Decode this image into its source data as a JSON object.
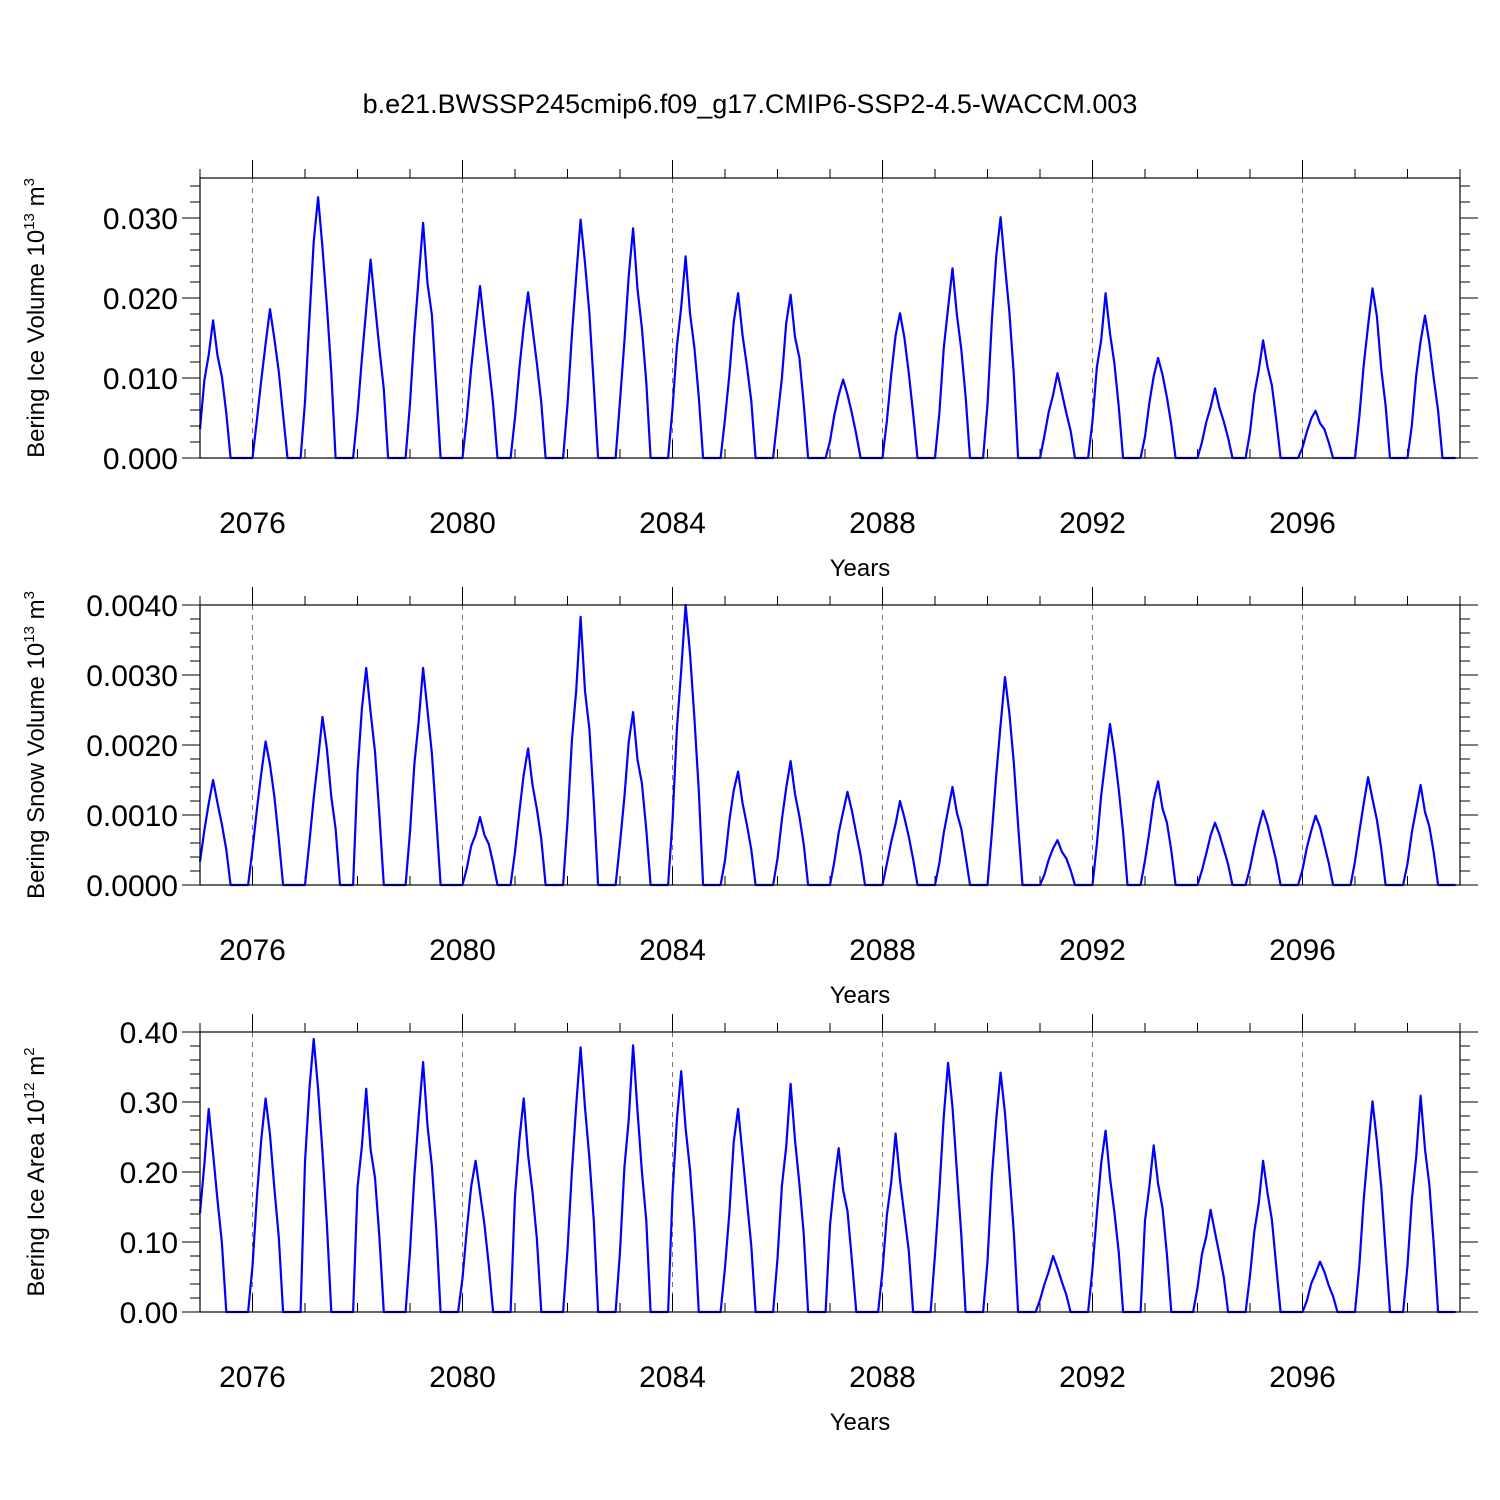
{
  "chart_data": {
    "title": "b.e21.BWSSP245cmip6.f09_g17.CMIP6-SSP2-4.5-WACCM.003",
    "type": "line",
    "xlim": [
      2075,
      2099
    ],
    "x_major_ticks": [
      2076,
      2080,
      2084,
      2088,
      2092,
      2096
    ],
    "x_tick_labels": [
      "2076",
      "2080",
      "2084",
      "2088",
      "2092",
      "2096"
    ],
    "series_color": "#0000ff",
    "panels": [
      {
        "name": "ice-volume",
        "xlabel": "Years",
        "ylabel_base": "Bering Ice Volume 10",
        "ylabel_exp": "13",
        "ylabel_unit": " m",
        "ylabel_unit_exp": "3",
        "ylim": [
          0,
          0.035
        ],
        "yticks": [
          0,
          0.01,
          0.02,
          0.03
        ],
        "ytick_labels": [
          "0.000",
          "0.010",
          "0.020",
          "0.030"
        ],
        "peaks": [
          {
            "x": 2075.25,
            "y": 0.0172
          },
          {
            "x": 2076.33,
            "y": 0.0186
          },
          {
            "x": 2077.25,
            "y": 0.0326
          },
          {
            "x": 2078.25,
            "y": 0.0248
          },
          {
            "x": 2079.25,
            "y": 0.0294
          },
          {
            "x": 2080.33,
            "y": 0.0215
          },
          {
            "x": 2081.25,
            "y": 0.0207
          },
          {
            "x": 2082.25,
            "y": 0.0298
          },
          {
            "x": 2083.25,
            "y": 0.0287
          },
          {
            "x": 2084.25,
            "y": 0.0252
          },
          {
            "x": 2085.25,
            "y": 0.0206
          },
          {
            "x": 2086.25,
            "y": 0.0204
          },
          {
            "x": 2087.25,
            "y": 0.0098
          },
          {
            "x": 2088.33,
            "y": 0.0181
          },
          {
            "x": 2089.33,
            "y": 0.0237
          },
          {
            "x": 2090.25,
            "y": 0.0301
          },
          {
            "x": 2091.33,
            "y": 0.0106
          },
          {
            "x": 2092.25,
            "y": 0.0206
          },
          {
            "x": 2093.25,
            "y": 0.0125
          },
          {
            "x": 2094.33,
            "y": 0.0087
          },
          {
            "x": 2095.25,
            "y": 0.0147
          },
          {
            "x": 2096.25,
            "y": 0.0059
          },
          {
            "x": 2097.33,
            "y": 0.0212
          },
          {
            "x": 2098.33,
            "y": 0.0178
          }
        ]
      },
      {
        "name": "snow-volume",
        "xlabel": "Years",
        "ylabel_base": "Bering Snow Volume 10",
        "ylabel_exp": "13",
        "ylabel_unit": " m",
        "ylabel_unit_exp": "3",
        "ylim": [
          0,
          0.004
        ],
        "yticks": [
          0,
          0.001,
          0.002,
          0.003,
          0.004
        ],
        "ytick_labels": [
          "0.0000",
          "0.0010",
          "0.0020",
          "0.0030",
          "0.0040"
        ],
        "peaks": [
          {
            "x": 2075.25,
            "y": 0.0015
          },
          {
            "x": 2076.25,
            "y": 0.00205
          },
          {
            "x": 2077.33,
            "y": 0.0024
          },
          {
            "x": 2078.17,
            "y": 0.0031
          },
          {
            "x": 2079.25,
            "y": 0.0031
          },
          {
            "x": 2080.33,
            "y": 0.00097
          },
          {
            "x": 2081.25,
            "y": 0.00195
          },
          {
            "x": 2082.25,
            "y": 0.00383
          },
          {
            "x": 2083.25,
            "y": 0.00247
          },
          {
            "x": 2084.25,
            "y": 0.004
          },
          {
            "x": 2085.25,
            "y": 0.00162
          },
          {
            "x": 2086.25,
            "y": 0.00177
          },
          {
            "x": 2087.33,
            "y": 0.00133
          },
          {
            "x": 2088.33,
            "y": 0.0012
          },
          {
            "x": 2089.33,
            "y": 0.0014
          },
          {
            "x": 2090.33,
            "y": 0.00297
          },
          {
            "x": 2091.33,
            "y": 0.00064
          },
          {
            "x": 2092.33,
            "y": 0.0023
          },
          {
            "x": 2093.25,
            "y": 0.00148
          },
          {
            "x": 2094.33,
            "y": 0.00089
          },
          {
            "x": 2095.25,
            "y": 0.00106
          },
          {
            "x": 2096.25,
            "y": 0.00099
          },
          {
            "x": 2097.25,
            "y": 0.00154
          },
          {
            "x": 2098.25,
            "y": 0.00143
          }
        ]
      },
      {
        "name": "ice-area",
        "xlabel": "Years",
        "ylabel_base": "Bering Ice Area 10",
        "ylabel_exp": "12",
        "ylabel_unit": " m",
        "ylabel_unit_exp": "2",
        "ylim": [
          0,
          0.4
        ],
        "yticks": [
          0,
          0.1,
          0.2,
          0.3,
          0.4
        ],
        "ytick_labels": [
          "0.00",
          "0.10",
          "0.20",
          "0.30",
          "0.40"
        ],
        "peaks": [
          {
            "x": 2075.17,
            "y": 0.29
          },
          {
            "x": 2076.25,
            "y": 0.305
          },
          {
            "x": 2077.17,
            "y": 0.39
          },
          {
            "x": 2078.17,
            "y": 0.319
          },
          {
            "x": 2079.25,
            "y": 0.357
          },
          {
            "x": 2080.25,
            "y": 0.216
          },
          {
            "x": 2081.17,
            "y": 0.305
          },
          {
            "x": 2082.25,
            "y": 0.378
          },
          {
            "x": 2083.25,
            "y": 0.381
          },
          {
            "x": 2084.17,
            "y": 0.344
          },
          {
            "x": 2085.25,
            "y": 0.29
          },
          {
            "x": 2086.25,
            "y": 0.326
          },
          {
            "x": 2087.17,
            "y": 0.234
          },
          {
            "x": 2088.25,
            "y": 0.255
          },
          {
            "x": 2089.25,
            "y": 0.356
          },
          {
            "x": 2090.25,
            "y": 0.342
          },
          {
            "x": 2091.25,
            "y": 0.08
          },
          {
            "x": 2092.25,
            "y": 0.259
          },
          {
            "x": 2093.17,
            "y": 0.238
          },
          {
            "x": 2094.25,
            "y": 0.146
          },
          {
            "x": 2095.25,
            "y": 0.216
          },
          {
            "x": 2096.33,
            "y": 0.072
          },
          {
            "x": 2097.33,
            "y": 0.301
          },
          {
            "x": 2098.25,
            "y": 0.309
          }
        ]
      }
    ]
  }
}
